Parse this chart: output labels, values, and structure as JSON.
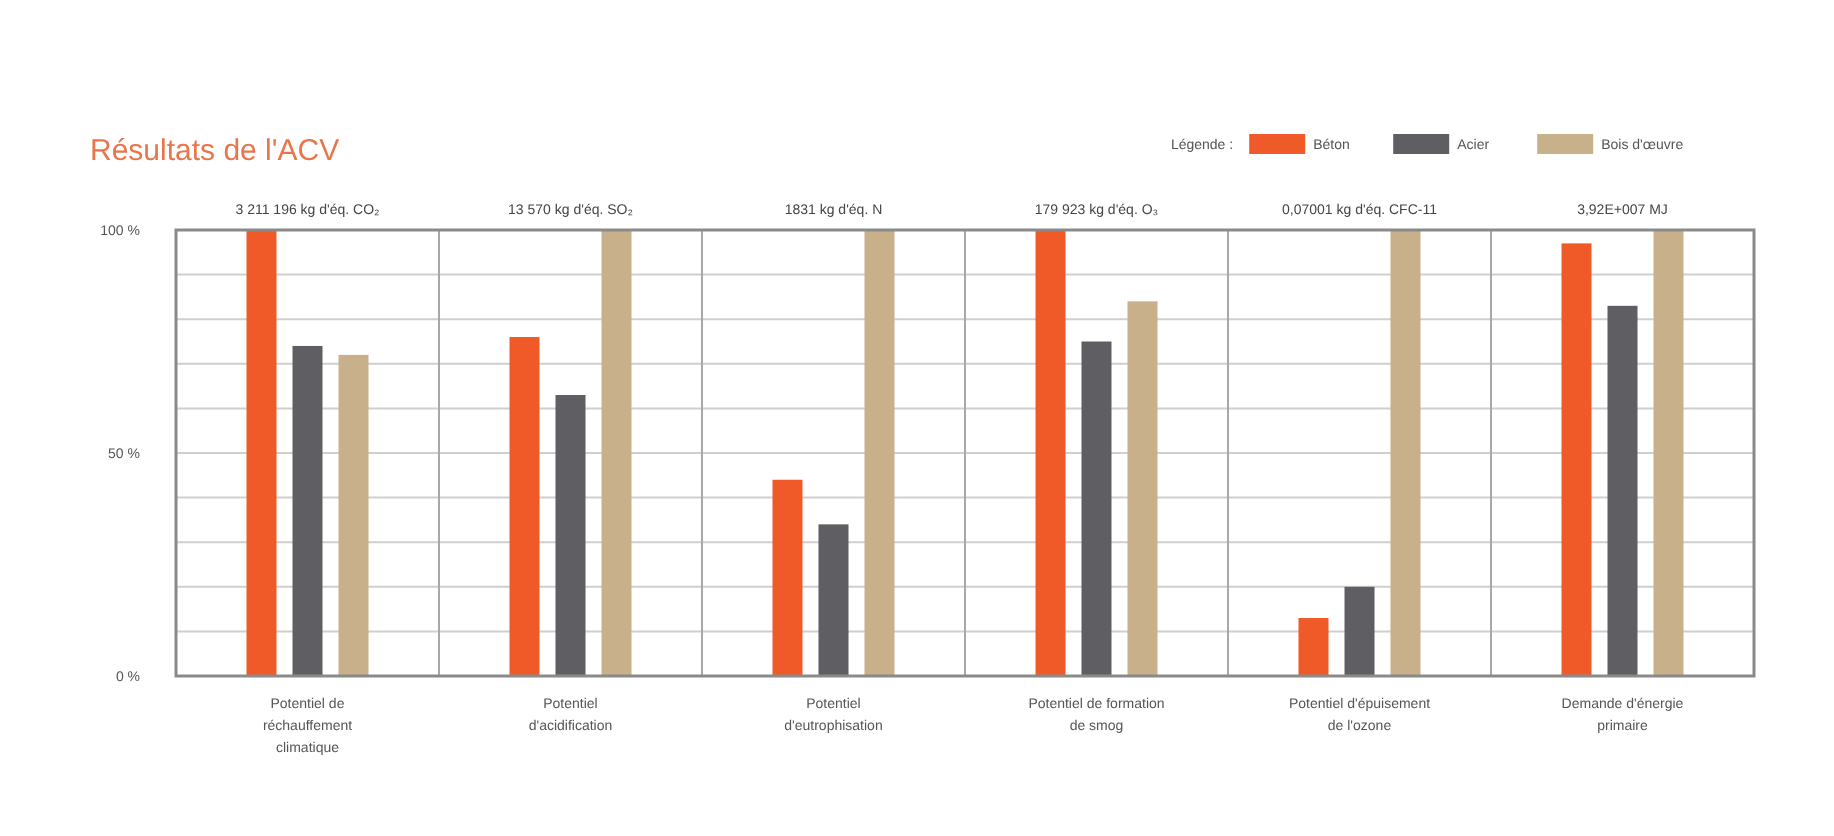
{
  "chart_data": {
    "type": "bar",
    "title": "Résultats de l'ACV",
    "legend_title": "Légende :",
    "categories": [
      "Potentiel de réchauffement climatique",
      "Potentiel d'acidification",
      "Potentiel d'eutrophisation",
      "Potentiel de formation de smog",
      "Potentiel d'épuisement de l'ozone",
      "Demande d'énergie primaire"
    ],
    "series": [
      {
        "name": "Béton",
        "color": "#f05a28",
        "values": [
          100,
          76,
          44,
          100,
          13,
          97
        ]
      },
      {
        "name": "Acier",
        "color": "#5f5f63",
        "values": [
          74,
          63,
          34,
          75,
          20,
          83
        ]
      },
      {
        "name": "Bois d'œuvre",
        "color": "#c8b08a",
        "values": [
          72,
          100,
          100,
          84,
          100,
          100
        ]
      }
    ],
    "ylim": [
      0,
      100
    ],
    "yticks": [
      {
        "value": 0,
        "label": "0 %"
      },
      {
        "value": 10,
        "label": null
      },
      {
        "value": 20,
        "label": null
      },
      {
        "value": 30,
        "label": null
      },
      {
        "value": 40,
        "label": null
      },
      {
        "value": 50,
        "label": "50 %"
      },
      {
        "value": 60,
        "label": null
      },
      {
        "value": 70,
        "label": null
      },
      {
        "value": 80,
        "label": null
      },
      {
        "value": 90,
        "label": null
      },
      {
        "value": 100,
        "label": "100 %"
      }
    ],
    "grid": "y",
    "legend": "top right",
    "annotations": [
      "3 211 196 kg d'éq. CO₂",
      "13 570 kg d'éq. SO₂",
      "1831 kg d'éq. N",
      "179 923 kg d'éq. O₃",
      "0,07001 kg d'éq. CFC-11",
      "3,92E+007 MJ"
    ]
  }
}
